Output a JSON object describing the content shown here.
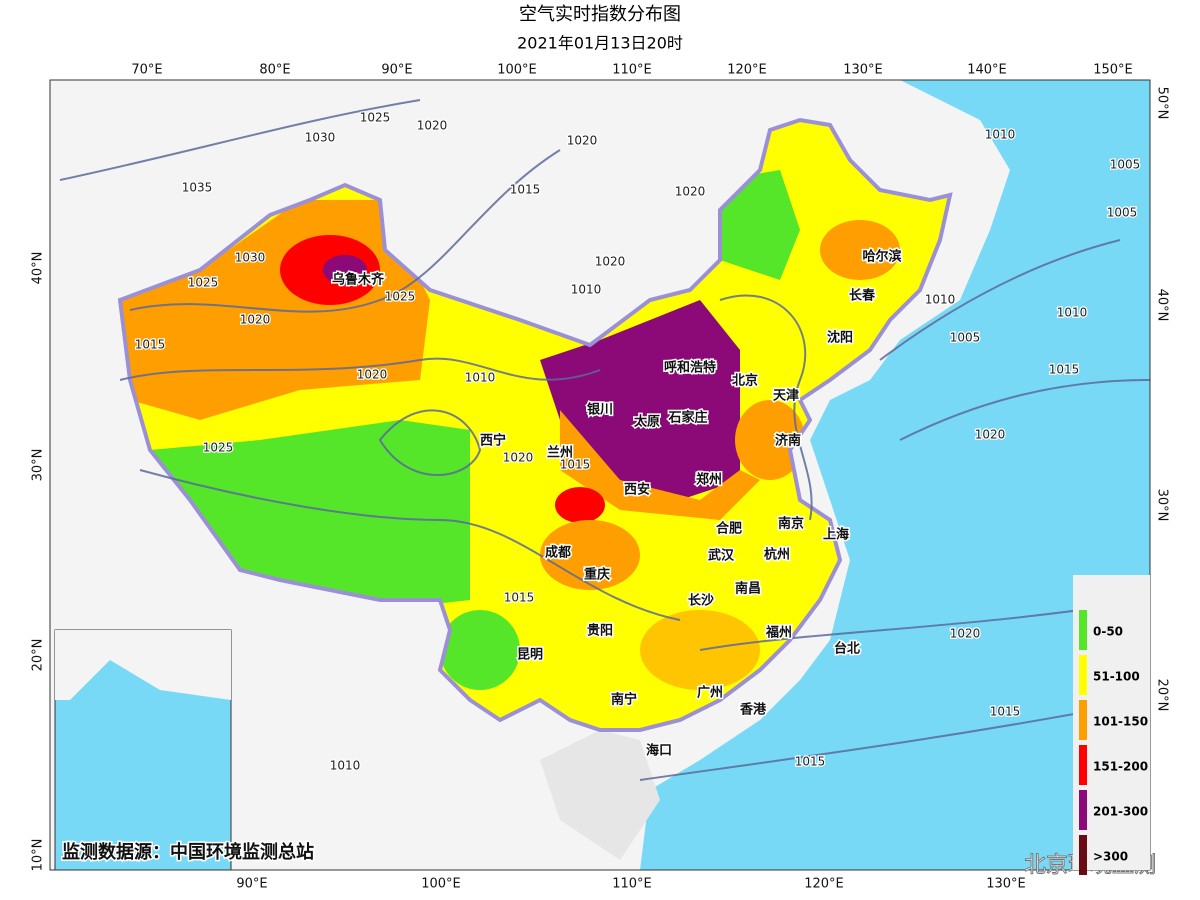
{
  "header": {
    "title": "空气实时指数分布图",
    "subtitle": "2021年01月13日20时"
  },
  "axes": {
    "top": [
      "70°E",
      "80°E",
      "90°E",
      "100°E",
      "110°E",
      "120°E",
      "130°E",
      "140°E",
      "150°E"
    ],
    "bottom": [
      "90°E",
      "100°E",
      "110°E",
      "120°E",
      "130°E"
    ],
    "left": [
      "40°N",
      "30°N",
      "20°N",
      "10°N"
    ],
    "right": [
      "50°N",
      "40°N",
      "30°N",
      "20°N"
    ]
  },
  "cities": [
    "乌鲁木齐",
    "哈尔滨",
    "长春",
    "沈阳",
    "呼和浩特",
    "北京",
    "天津",
    "银川",
    "太原",
    "石家庄",
    "济南",
    "西宁",
    "兰州",
    "郑州",
    "西安",
    "合肥",
    "南京",
    "上海",
    "成都",
    "武汉",
    "杭州",
    "重庆",
    "长沙",
    "南昌",
    "贵阳",
    "福州",
    "台北",
    "昆明",
    "南宁",
    "广州",
    "香港",
    "海口"
  ],
  "isobars": [
    "1035",
    "1030",
    "1025",
    "1020",
    "1020",
    "1015",
    "1020",
    "1010",
    "1025",
    "1020",
    "1015",
    "1025",
    "1020",
    "1010",
    "1015",
    "1020",
    "1010",
    "1005",
    "1005",
    "1010",
    "1010",
    "1005",
    "1015",
    "1020",
    "1020",
    "1015",
    "1015",
    "1010",
    "1020",
    "1015",
    "1030",
    "1025"
  ],
  "legend": [
    {
      "label": "0-50",
      "color": "#55e62a"
    },
    {
      "label": "51-100",
      "color": "#ffff00"
    },
    {
      "label": "101-150",
      "color": "#ff9e00"
    },
    {
      "label": "151-200",
      "color": "#ff0000"
    },
    {
      "label": "201-300",
      "color": "#8c0a78"
    },
    {
      "label": ">300",
      "color": "#6b0a17"
    }
  ],
  "source": "监测数据源：中国环境监测总站",
  "watermark": "北京环境监测"
}
